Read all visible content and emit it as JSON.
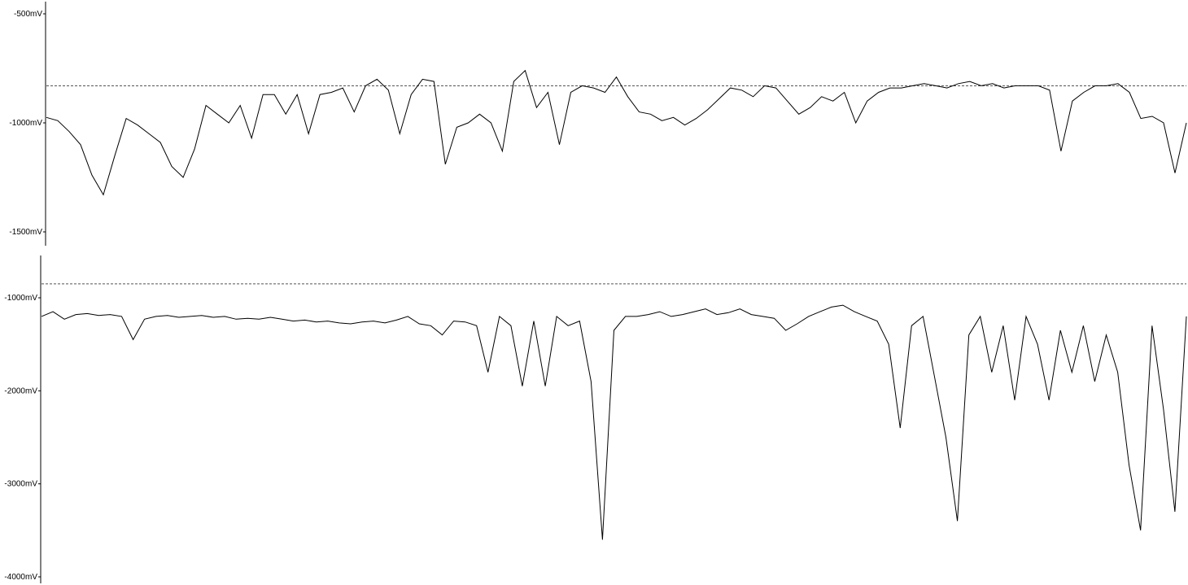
{
  "chart_data": [
    {
      "type": "line",
      "name": "",
      "unit": "mV",
      "ylim": [
        -500,
        -1500
      ],
      "ticks": [
        {
          "value": -500,
          "label": "-500mV"
        },
        {
          "value": -1000,
          "label": "-1000mV"
        },
        {
          "value": -1500,
          "label": "-1500mV"
        }
      ],
      "reference_line": -830,
      "grid": false,
      "series": [
        {
          "x": [
            0,
            1,
            2,
            3,
            4,
            5,
            6,
            7,
            8,
            9,
            10,
            11,
            12,
            13,
            14,
            15,
            16,
            17,
            18,
            19,
            20,
            21,
            22,
            23,
            24,
            25,
            26,
            27,
            28,
            29,
            30,
            31,
            32,
            33,
            34,
            35,
            36,
            37,
            38,
            39,
            40,
            41,
            42,
            43,
            44,
            45,
            46,
            47,
            48,
            49,
            50,
            51,
            52,
            53,
            54,
            55,
            56,
            57,
            58,
            59,
            60,
            61,
            62,
            63,
            64,
            65,
            66,
            67,
            68,
            69,
            70,
            71,
            72,
            73,
            74,
            75,
            76,
            77,
            78,
            79,
            80,
            81,
            82,
            83,
            84,
            85,
            86,
            87,
            88,
            89,
            90,
            91,
            92,
            93,
            94,
            95,
            96,
            97,
            98,
            99,
            100
          ],
          "values": [
            -975,
            -990,
            -1040,
            -1100,
            -1240,
            -1330,
            -1150,
            -980,
            -1010,
            -1050,
            -1090,
            -1200,
            -1250,
            -1120,
            -920,
            -960,
            -1000,
            -920,
            -1070,
            -870,
            -870,
            -960,
            -870,
            -1050,
            -870,
            -860,
            -840,
            -950,
            -830,
            -800,
            -850,
            -1050,
            -870,
            -800,
            -810,
            -1190,
            -1020,
            -1000,
            -960,
            -1000,
            -1130,
            -810,
            -760,
            -930,
            -860,
            -1100,
            -860,
            -830,
            -840,
            -860,
            -790,
            -880,
            -950,
            -960,
            -990,
            -975,
            -1010,
            -980,
            -940,
            -890,
            -840,
            -850,
            -880,
            -830,
            -840,
            -900,
            -960,
            -930,
            -880,
            -900,
            -860,
            -1000,
            -900,
            -860,
            -840,
            -840,
            -830,
            -820,
            -830,
            -840,
            -820,
            -810,
            -830,
            -820,
            -840,
            -830,
            -830,
            -830,
            -850,
            -1130,
            -900,
            -860,
            -830,
            -830,
            -820,
            -860,
            -980,
            -970,
            -1000,
            -1230,
            -1000
          ]
        }
      ]
    },
    {
      "type": "line",
      "name": "",
      "unit": "mV",
      "ylim": [
        -700,
        -4000
      ],
      "ticks": [
        {
          "value": -1000,
          "label": "-1000mV"
        },
        {
          "value": -2000,
          "label": "-2000mV"
        },
        {
          "value": -3000,
          "label": "-3000mV"
        },
        {
          "value": -4000,
          "label": "-4000mV"
        }
      ],
      "reference_line": -850,
      "grid": false,
      "series": [
        {
          "x": [
            0,
            1,
            2,
            3,
            4,
            5,
            6,
            7,
            8,
            9,
            10,
            11,
            12,
            13,
            14,
            15,
            16,
            17,
            18,
            19,
            20,
            21,
            22,
            23,
            24,
            25,
            26,
            27,
            28,
            29,
            30,
            31,
            32,
            33,
            34,
            35,
            36,
            37,
            38,
            39,
            40,
            41,
            42,
            43,
            44,
            45,
            46,
            47,
            48,
            49,
            50,
            51,
            52,
            53,
            54,
            55,
            56,
            57,
            58,
            59,
            60,
            61,
            62,
            63,
            64,
            65,
            66,
            67,
            68,
            69,
            70,
            71,
            72,
            73,
            74,
            75,
            76,
            77,
            78,
            79,
            80,
            81,
            82,
            83,
            84,
            85,
            86,
            87,
            88,
            89,
            90,
            91,
            92,
            93,
            94,
            95,
            96,
            97,
            98,
            99,
            100
          ],
          "values": [
            -1200,
            -1150,
            -1230,
            -1180,
            -1170,
            -1190,
            -1180,
            -1200,
            -1450,
            -1230,
            -1200,
            -1190,
            -1210,
            -1200,
            -1190,
            -1210,
            -1200,
            -1230,
            -1220,
            -1230,
            -1210,
            -1230,
            -1250,
            -1240,
            -1260,
            -1250,
            -1270,
            -1280,
            -1260,
            -1250,
            -1270,
            -1240,
            -1200,
            -1280,
            -1300,
            -1400,
            -1250,
            -1260,
            -1300,
            -1800,
            -1200,
            -1300,
            -1950,
            -1250,
            -1950,
            -1200,
            -1300,
            -1250,
            -1900,
            -3600,
            -1350,
            -1200,
            -1200,
            -1180,
            -1150,
            -1200,
            -1180,
            -1150,
            -1120,
            -1180,
            -1160,
            -1120,
            -1180,
            -1200,
            -1220,
            -1350,
            -1280,
            -1200,
            -1150,
            -1100,
            -1080,
            -1150,
            -1200,
            -1250,
            -1500,
            -2400,
            -1300,
            -1200,
            -1850,
            -2500,
            -3400,
            -1400,
            -1200,
            -1800,
            -1300,
            -2100,
            -1200,
            -1500,
            -2100,
            -1350,
            -1800,
            -1300,
            -1900,
            -1400,
            -1800,
            -2800,
            -3500,
            -1300,
            -2200,
            -3300,
            -1200
          ]
        }
      ]
    }
  ]
}
